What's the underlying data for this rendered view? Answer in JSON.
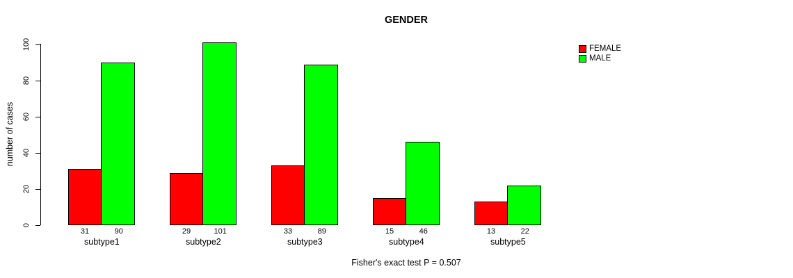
{
  "title": "GENDER",
  "footnote": "Fisher's exact test P = 0.507",
  "y_axis": {
    "label": "number of cases",
    "tick_labels": [
      "0",
      "20",
      "40",
      "60",
      "80",
      "100"
    ]
  },
  "legend": {
    "items": [
      {
        "label": "FEMALE",
        "color": "#FF0000"
      },
      {
        "label": "MALE",
        "color": "#00FF00"
      }
    ]
  },
  "colors": {
    "female": "#FF0000",
    "male": "#00FF00",
    "axis": "#000000",
    "background": "#FFFFFF"
  },
  "chart_data": {
    "type": "bar",
    "title": "GENDER",
    "xlabel": "",
    "ylabel": "number of cases",
    "categories": [
      "subtype1",
      "subtype2",
      "subtype3",
      "subtype4",
      "subtype5"
    ],
    "series": [
      {
        "name": "FEMALE",
        "color": "#FF0000",
        "values": [
          31,
          29,
          33,
          15,
          13
        ]
      },
      {
        "name": "MALE",
        "color": "#00FF00",
        "values": [
          90,
          101,
          89,
          46,
          22
        ]
      }
    ],
    "bar_value_labels": {
      "FEMALE": [
        31,
        29,
        33,
        15,
        13
      ],
      "MALE": [
        90,
        101,
        89,
        46,
        22
      ]
    },
    "ylim": [
      0,
      100
    ],
    "yticks": [
      0,
      20,
      40,
      60,
      80,
      100
    ],
    "grid": false,
    "legend_position": "top-right",
    "annotation": "Fisher's exact test P = 0.507"
  }
}
